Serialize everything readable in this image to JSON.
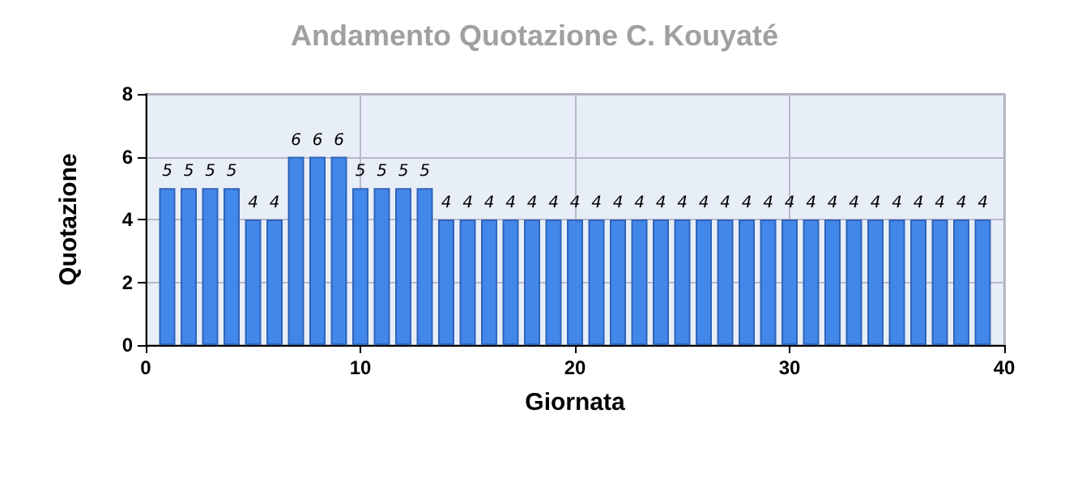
{
  "chart_data": {
    "type": "bar",
    "title": "Andamento Quotazione C. Kouyaté",
    "xlabel": "Giornata",
    "ylabel": "Quotazione",
    "x": [
      1,
      2,
      3,
      4,
      5,
      6,
      7,
      8,
      9,
      10,
      11,
      12,
      13,
      14,
      15,
      16,
      17,
      18,
      19,
      20,
      21,
      22,
      23,
      24,
      25,
      26,
      27,
      28,
      29,
      30,
      31,
      32,
      33,
      34,
      35,
      36,
      37,
      38,
      39
    ],
    "values": [
      5,
      5,
      5,
      5,
      4,
      4,
      6,
      6,
      6,
      5,
      5,
      5,
      5,
      4,
      4,
      4,
      4,
      4,
      4,
      4,
      4,
      4,
      4,
      4,
      4,
      4,
      4,
      4,
      4,
      4,
      4,
      4,
      4,
      4,
      4,
      4,
      4,
      4,
      4
    ],
    "color": "#4287ea",
    "xlim": [
      0,
      40
    ],
    "xticks": [
      0,
      10,
      20,
      30,
      40
    ],
    "ylim": [
      0,
      8
    ],
    "yticks": [
      0,
      2,
      4,
      6,
      8
    ],
    "grid": true,
    "data_labels": true
  }
}
